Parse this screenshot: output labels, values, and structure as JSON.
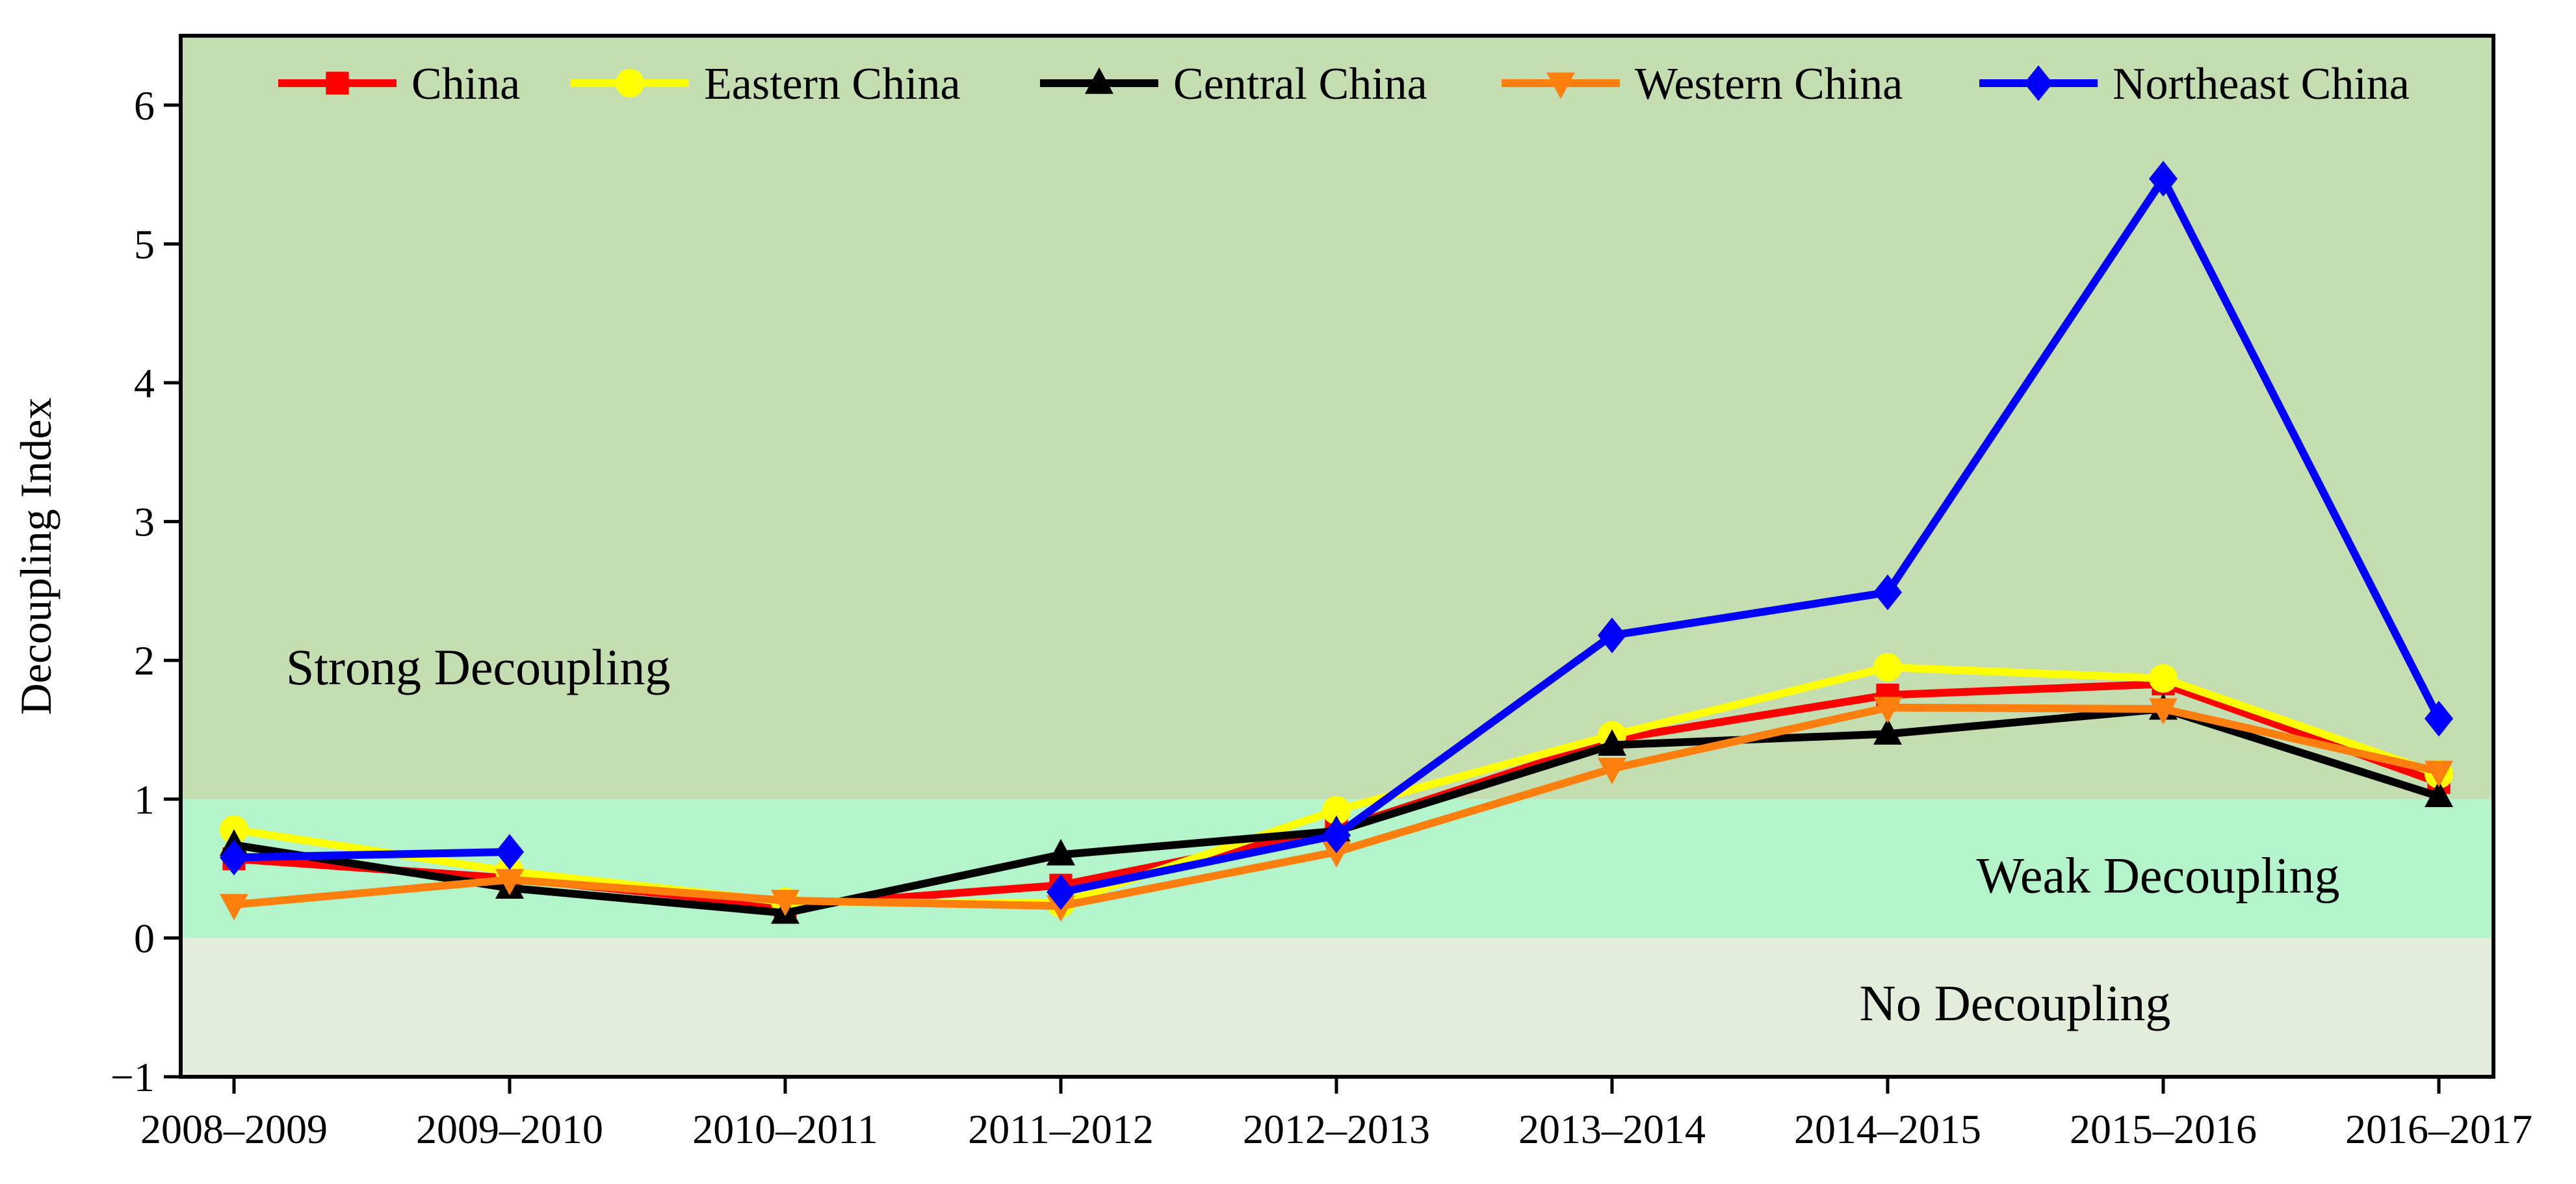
{
  "chart_data": {
    "type": "line",
    "title": "",
    "xlabel": "",
    "ylabel": "Decoupling Index",
    "categories": [
      "2008–2009",
      "2009–2010",
      "2010–2011",
      "2011–2012",
      "2012–2013",
      "2013–2014",
      "2014–2015",
      "2015–2016",
      "2016–2017"
    ],
    "ylim": [
      -1,
      6.5
    ],
    "yticks": [
      -1,
      0,
      1,
      2,
      3,
      4,
      5,
      6
    ],
    "ytick_labels": [
      "−1",
      "0",
      "1",
      "2",
      "3",
      "4",
      "5",
      "6"
    ],
    "grid": false,
    "legend_position": "top",
    "regions": [
      {
        "name": "No Decoupling",
        "from": -1,
        "to": 0,
        "color": "#e2eedb"
      },
      {
        "name": "Weak Decoupling",
        "from": 0,
        "to": 1,
        "color": "#b3f4cb"
      },
      {
        "name": "Strong Decoupling",
        "from": 1,
        "to": 6.5,
        "color": "#c4deb1"
      }
    ],
    "series": [
      {
        "name": "China",
        "color": "#ff0000",
        "marker": "square",
        "values": [
          0.57,
          0.43,
          0.23,
          0.38,
          0.78,
          1.43,
          1.75,
          1.83,
          1.12
        ]
      },
      {
        "name": "Eastern China",
        "color": "#ffff00",
        "marker": "circle",
        "values": [
          0.78,
          0.48,
          0.26,
          0.25,
          0.92,
          1.46,
          1.95,
          1.87,
          1.18
        ]
      },
      {
        "name": "Central China",
        "color": "#000000",
        "marker": "triangle-up",
        "values": [
          0.67,
          0.36,
          0.18,
          0.6,
          0.77,
          1.39,
          1.47,
          1.65,
          1.02
        ]
      },
      {
        "name": "Western China",
        "color": "#ff7f0e",
        "marker": "triangle-down",
        "values": [
          0.24,
          0.42,
          0.27,
          0.23,
          0.62,
          1.22,
          1.66,
          1.65,
          1.2
        ]
      },
      {
        "name": "Northeast China",
        "color": "#0000ff",
        "marker": "diamond",
        "values": [
          0.58,
          0.62,
          null,
          0.33,
          0.74,
          2.18,
          2.49,
          5.47,
          1.58
        ]
      }
    ]
  }
}
